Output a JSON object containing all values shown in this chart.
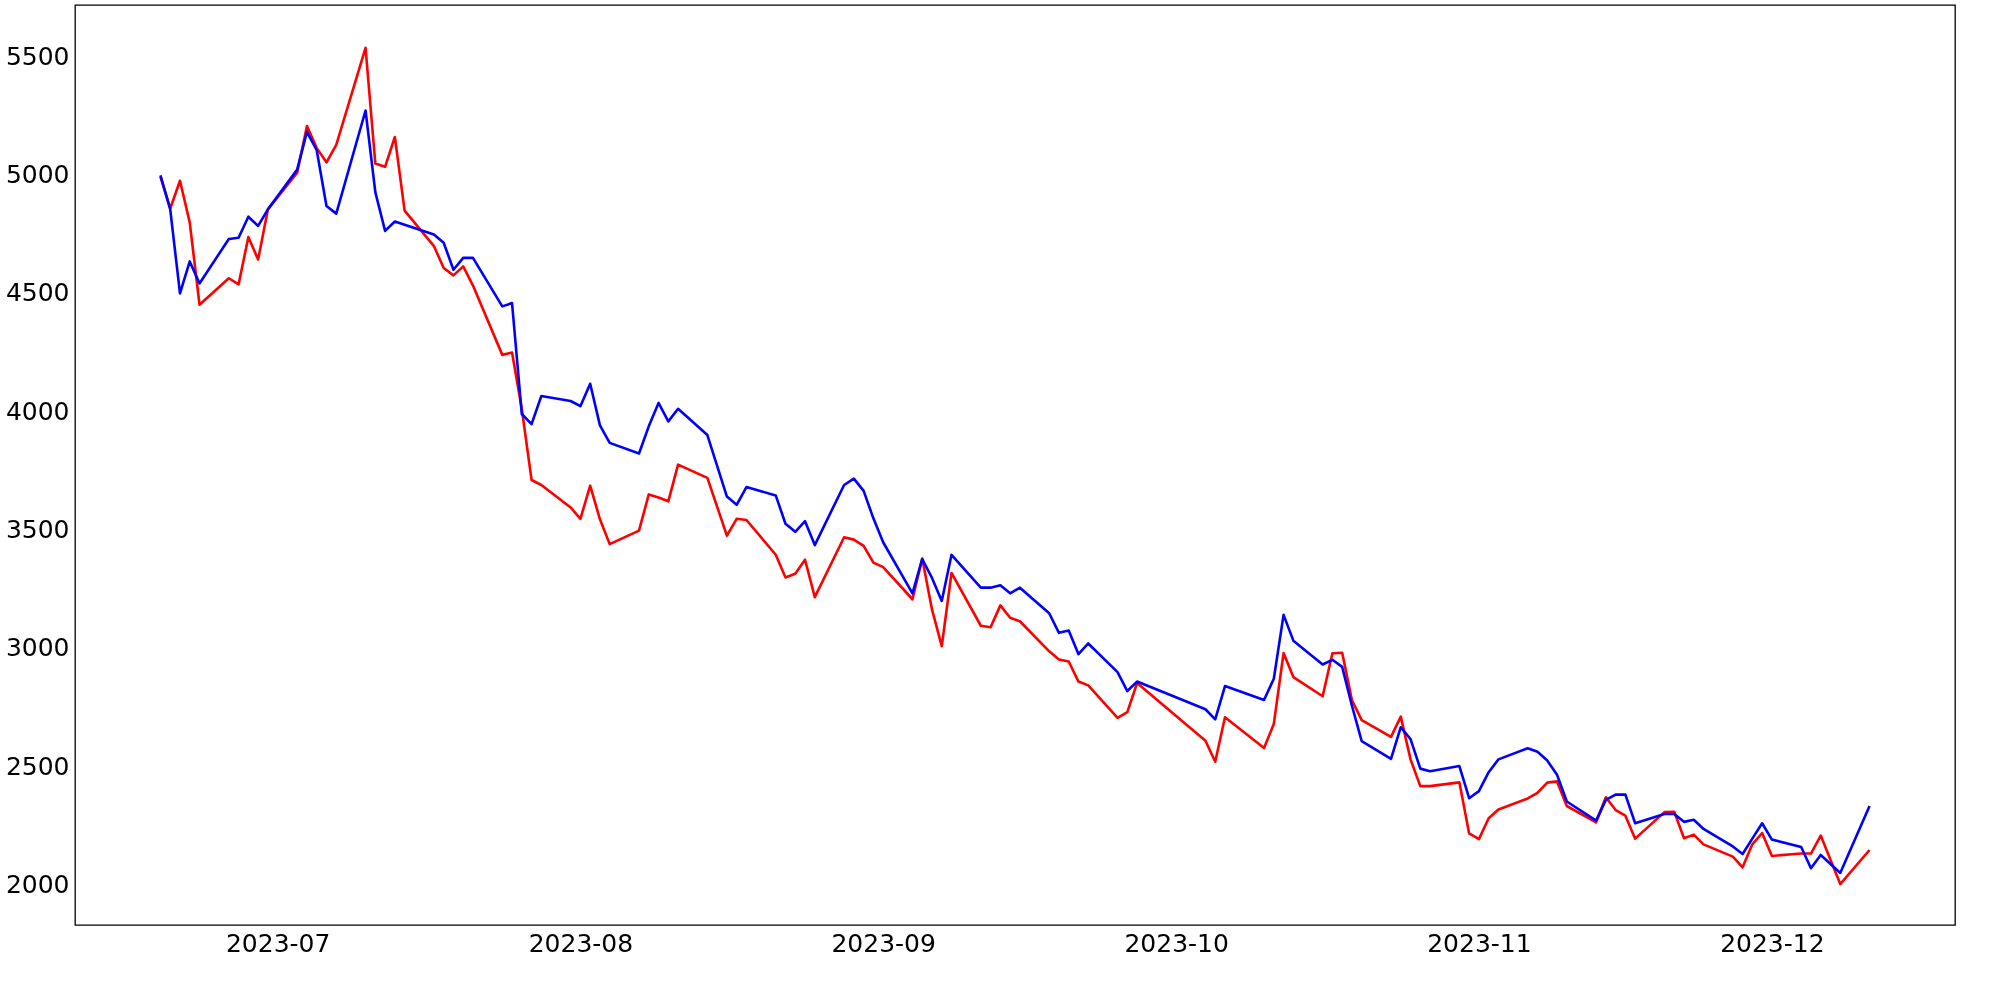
{
  "chart_data": {
    "type": "line",
    "x": [
      "2023-06-19",
      "2023-06-20",
      "2023-06-21",
      "2023-06-22",
      "2023-06-23",
      "2023-06-26",
      "2023-06-27",
      "2023-06-28",
      "2023-06-29",
      "2023-06-30",
      "2023-07-03",
      "2023-07-04",
      "2023-07-05",
      "2023-07-06",
      "2023-07-07",
      "2023-07-10",
      "2023-07-11",
      "2023-07-12",
      "2023-07-13",
      "2023-07-14",
      "2023-07-17",
      "2023-07-18",
      "2023-07-19",
      "2023-07-20",
      "2023-07-21",
      "2023-07-24",
      "2023-07-25",
      "2023-07-26",
      "2023-07-27",
      "2023-07-28",
      "2023-07-31",
      "2023-08-01",
      "2023-08-02",
      "2023-08-03",
      "2023-08-04",
      "2023-08-07",
      "2023-08-08",
      "2023-08-09",
      "2023-08-10",
      "2023-08-11",
      "2023-08-14",
      "2023-08-16",
      "2023-08-17",
      "2023-08-18",
      "2023-08-21",
      "2023-08-22",
      "2023-08-23",
      "2023-08-24",
      "2023-08-25",
      "2023-08-28",
      "2023-08-29",
      "2023-08-30",
      "2023-08-31",
      "2023-09-01",
      "2023-09-04",
      "2023-09-05",
      "2023-09-06",
      "2023-09-07",
      "2023-09-08",
      "2023-09-11",
      "2023-09-12",
      "2023-09-13",
      "2023-09-14",
      "2023-09-15",
      "2023-09-18",
      "2023-09-19",
      "2023-09-20",
      "2023-09-21",
      "2023-09-22",
      "2023-09-25",
      "2023-09-26",
      "2023-09-27",
      "2023-10-04",
      "2023-10-05",
      "2023-10-06",
      "2023-10-10",
      "2023-10-11",
      "2023-10-12",
      "2023-10-13",
      "2023-10-16",
      "2023-10-17",
      "2023-10-18",
      "2023-10-19",
      "2023-10-20",
      "2023-10-23",
      "2023-10-24",
      "2023-10-25",
      "2023-10-26",
      "2023-10-27",
      "2023-10-30",
      "2023-10-31",
      "2023-11-01",
      "2023-11-02",
      "2023-11-03",
      "2023-11-06",
      "2023-11-07",
      "2023-11-08",
      "2023-11-09",
      "2023-11-10",
      "2023-11-13",
      "2023-11-14",
      "2023-11-15",
      "2023-11-16",
      "2023-11-17",
      "2023-11-20",
      "2023-11-21",
      "2023-11-22",
      "2023-11-23",
      "2023-11-24",
      "2023-11-27",
      "2023-11-28",
      "2023-11-29",
      "2023-11-30",
      "2023-12-01",
      "2023-12-04",
      "2023-12-05",
      "2023-12-06",
      "2023-12-07",
      "2023-12-08",
      "2023-12-11"
    ],
    "series": [
      {
        "color": "#ff0000",
        "values": [
          4991,
          4857,
          4974,
          4797,
          4450,
          4562,
          4536,
          4736,
          4641,
          4853,
          5008,
          5205,
          5112,
          5052,
          5126,
          5536,
          5047,
          5033,
          5159,
          4848,
          4698,
          4605,
          4574,
          4612,
          4531,
          4238,
          4248,
          4009,
          3709,
          3688,
          3593,
          3545,
          3685,
          3543,
          3438,
          3495,
          3648,
          3635,
          3619,
          3774,
          3718,
          3474,
          3545,
          3540,
          3393,
          3297,
          3313,
          3372,
          3214,
          3467,
          3457,
          3431,
          3360,
          3341,
          3205,
          3377,
          3162,
          3007,
          3316,
          3093,
          3087,
          3179,
          3127,
          3112,
          2985,
          2950,
          2942,
          2857,
          2841,
          2704,
          2728,
          2851,
          2607,
          2518,
          2706,
          2576,
          2678,
          2978,
          2876,
          2795,
          2977,
          2979,
          2778,
          2694,
          2623,
          2709,
          2528,
          2415,
          2415,
          2431,
          2215,
          2191,
          2279,
          2316,
          2363,
          2387,
          2430,
          2435,
          2331,
          2262,
          2368,
          2314,
          2290,
          2193,
          2305,
          2307,
          2195,
          2210,
          2169,
          2117,
          2072,
          2169,
          2217,
          2120,
          2130,
          2130,
          2206,
          2104,
          2001,
          2145
        ]
      },
      {
        "color": "#0000ff",
        "values": [
          4997,
          4853,
          4498,
          4633,
          4540,
          4728,
          4733,
          4822,
          4783,
          4853,
          5022,
          5181,
          5103,
          4867,
          4835,
          5271,
          4926,
          4762,
          4802,
          4788,
          4747,
          4712,
          4598,
          4648,
          4648,
          4443,
          4457,
          3988,
          3945,
          4064,
          4043,
          4021,
          4116,
          3940,
          3866,
          3821,
          3936,
          4035,
          3957,
          4010,
          3899,
          3639,
          3604,
          3679,
          3644,
          3524,
          3490,
          3535,
          3434,
          3688,
          3715,
          3663,
          3547,
          3446,
          3230,
          3375,
          3295,
          3198,
          3393,
          3254,
          3254,
          3264,
          3230,
          3254,
          3146,
          3063,
          3073,
          2973,
          3018,
          2897,
          2817,
          2857,
          2740,
          2697,
          2838,
          2779,
          2869,
          3139,
          3030,
          2929,
          2949,
          2919,
          2755,
          2605,
          2530,
          2664,
          2614,
          2489,
          2478,
          2500,
          2364,
          2394,
          2474,
          2528,
          2575,
          2560,
          2523,
          2463,
          2350,
          2269,
          2357,
          2379,
          2379,
          2258,
          2297,
          2297,
          2264,
          2273,
          2234,
          2160,
          2128,
          2193,
          2258,
          2189,
          2158,
          2068,
          2124,
          2086,
          2048,
          2331
        ]
      }
    ],
    "xlim": [
      "2023-06-10T06:00",
      "2023-12-19T18:00"
    ],
    "xticks": [
      {
        "value": "2023-07-01",
        "label": "2023-07"
      },
      {
        "value": "2023-08-01",
        "label": "2023-08"
      },
      {
        "value": "2023-09-01",
        "label": "2023-09"
      },
      {
        "value": "2023-10-01",
        "label": "2023-10"
      },
      {
        "value": "2023-11-01",
        "label": "2023-11"
      },
      {
        "value": "2023-12-01",
        "label": "2023-12"
      }
    ],
    "ylim": [
      1828,
      5717
    ],
    "yticks": [
      2000,
      2500,
      3000,
      3500,
      4000,
      4500,
      5000,
      5500
    ],
    "grid": false,
    "line_style": "solid",
    "marker": "none"
  }
}
